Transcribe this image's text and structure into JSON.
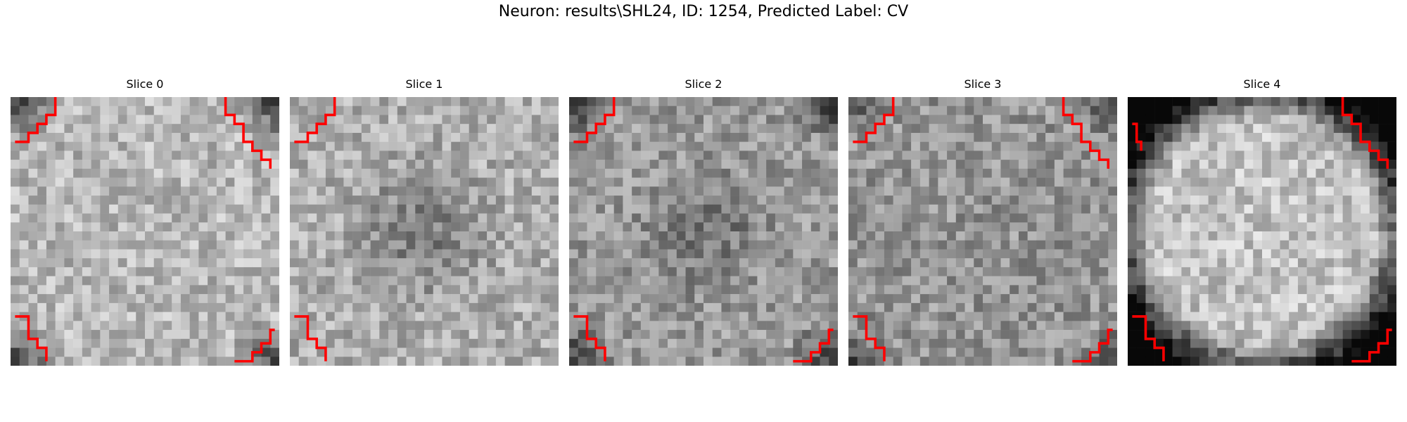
{
  "figure": {
    "suptitle": "Neuron: results\\SHL24, ID: 1254, Predicted Label: CV"
  },
  "contour_color": "#ff0000",
  "slices": [
    {
      "title": "Slice 0",
      "pattern": "bright-center-dark-corners",
      "contours": [
        "top-left",
        "top-right",
        "bottom-left",
        "bottom-right"
      ]
    },
    {
      "title": "Slice 1",
      "pattern": "mottled-dark-center",
      "contours": [
        "top-left",
        "bottom-left"
      ]
    },
    {
      "title": "Slice 2",
      "pattern": "dark-center-dark-corners",
      "contours": [
        "top-left",
        "bottom-left",
        "bottom-right"
      ]
    },
    {
      "title": "Slice 3",
      "pattern": "noisy-uniform",
      "contours": [
        "top-left",
        "top-right",
        "bottom-left",
        "bottom-right"
      ]
    },
    {
      "title": "Slice 4",
      "pattern": "bright-disc-dark-rim",
      "contours": [
        "top-right",
        "left",
        "bottom-left",
        "bottom-right"
      ]
    }
  ]
}
